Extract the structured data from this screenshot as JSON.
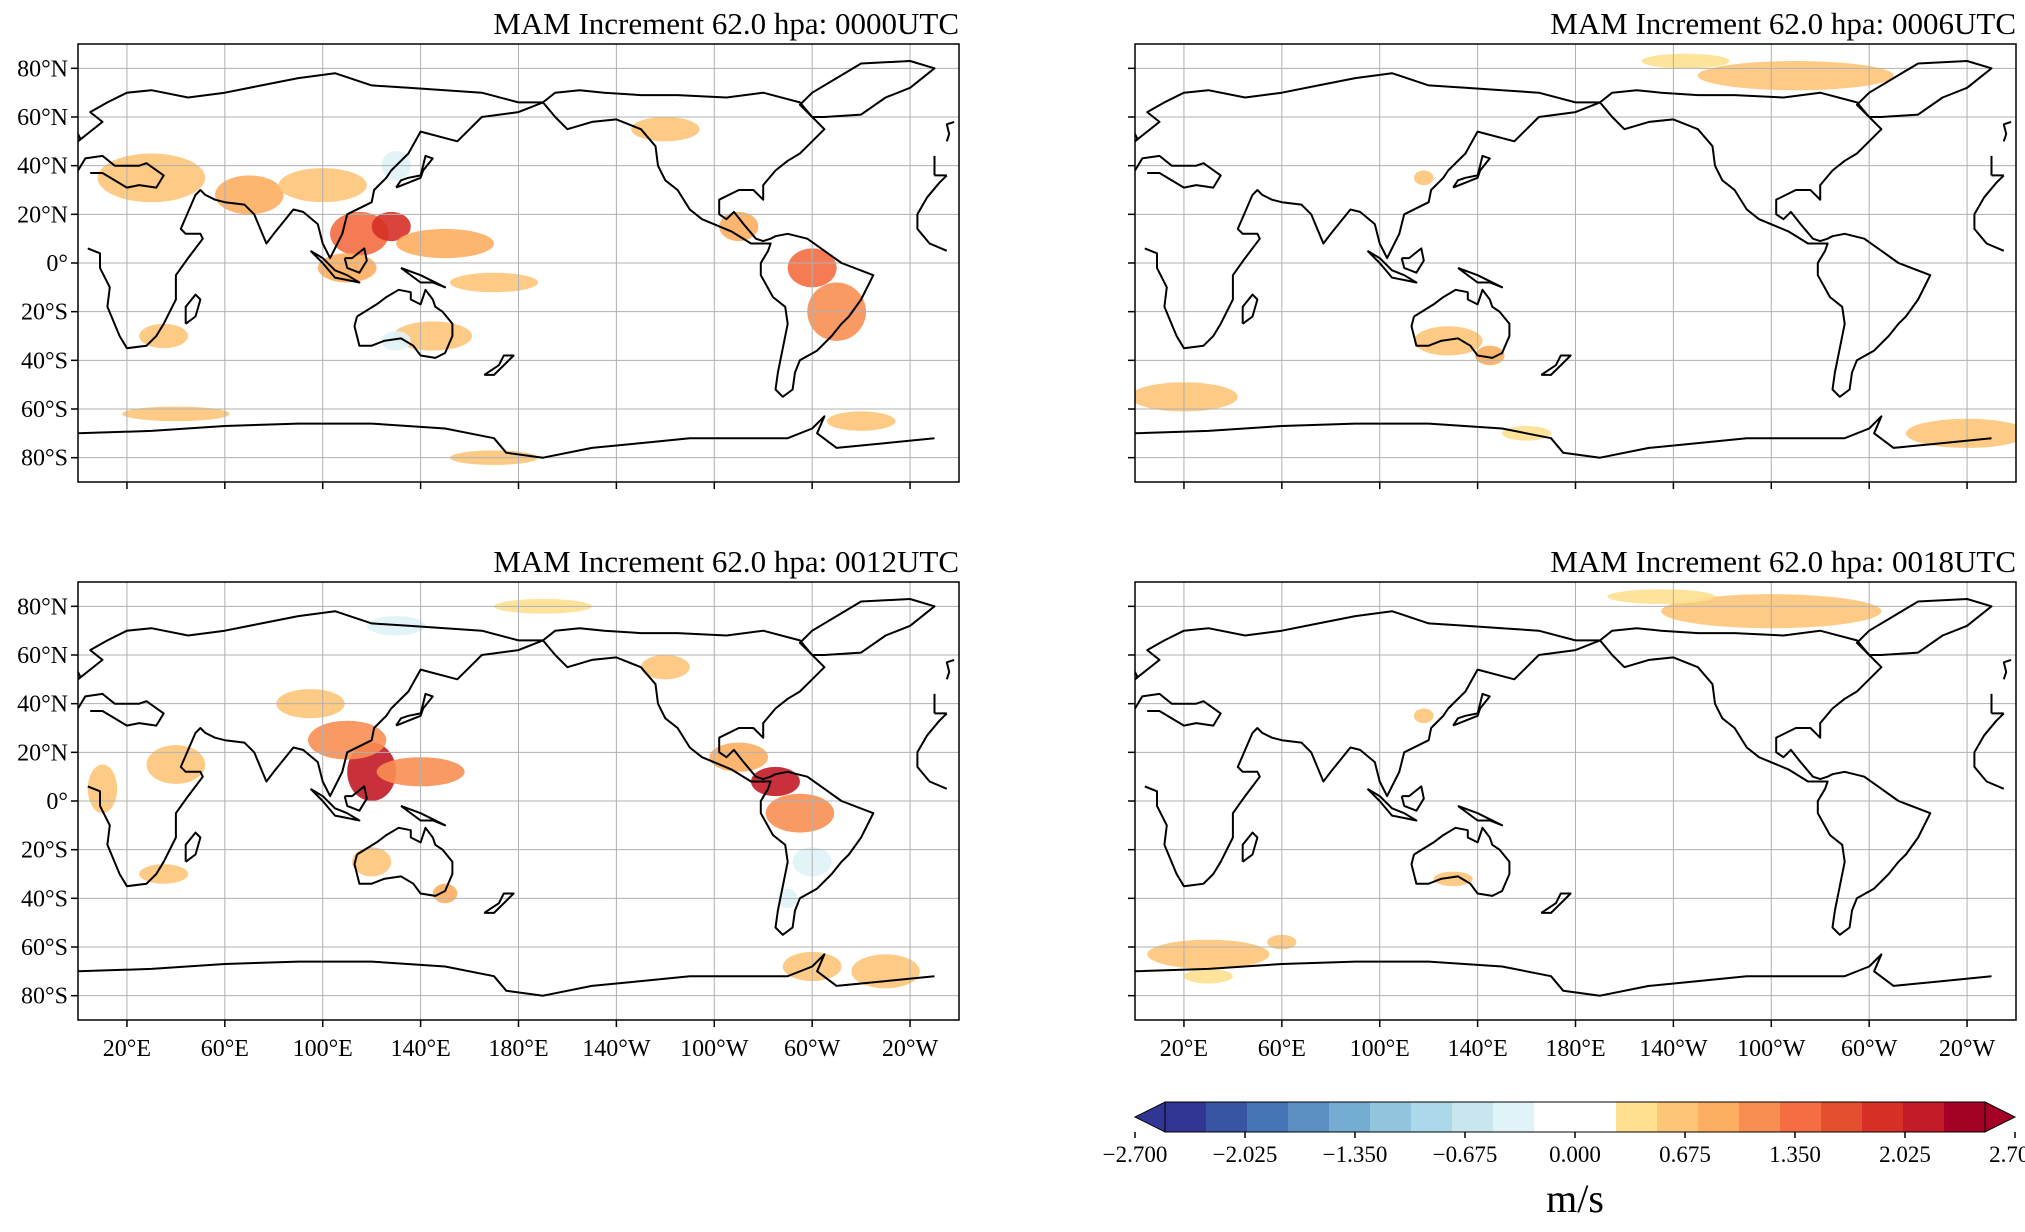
{
  "chart_data": [
    {
      "type": "heatmap",
      "title": "MAM Increment 62.0 hpa:  0000UTC",
      "x_ticks": [
        "20°E",
        "60°E",
        "100°E",
        "140°E",
        "180°E",
        "140°W",
        "100°W",
        "60°W",
        "20°W"
      ],
      "y_ticks": [
        "80°N",
        "60°N",
        "40°N",
        "20°N",
        "0°",
        "20°S",
        "40°S",
        "60°S",
        "80°S"
      ],
      "show_x_ticks": false,
      "show_y_ticks": true,
      "grid": true,
      "blobs": [
        {
          "lon": 30,
          "lat": 35,
          "rx": 22,
          "ry": 10,
          "value": 0.8
        },
        {
          "lon": 70,
          "lat": 28,
          "rx": 14,
          "ry": 8,
          "value": 1.0
        },
        {
          "lon": 100,
          "lat": 32,
          "rx": 18,
          "ry": 7,
          "value": 0.7
        },
        {
          "lon": 115,
          "lat": 12,
          "rx": 12,
          "ry": 9,
          "value": 1.5
        },
        {
          "lon": 128,
          "lat": 15,
          "rx": 8,
          "ry": 6,
          "value": 1.9
        },
        {
          "lon": 150,
          "lat": 8,
          "rx": 20,
          "ry": 6,
          "value": 0.9
        },
        {
          "lon": 110,
          "lat": -2,
          "rx": 12,
          "ry": 6,
          "value": 0.9
        },
        {
          "lon": 170,
          "lat": -8,
          "rx": 18,
          "ry": 4,
          "value": 0.6
        },
        {
          "lon": 145,
          "lat": -30,
          "rx": 16,
          "ry": 6,
          "value": 0.6
        },
        {
          "lon": 35,
          "lat": -30,
          "rx": 10,
          "ry": 5,
          "value": 0.7
        },
        {
          "lon": -60,
          "lat": -2,
          "rx": 10,
          "ry": 8,
          "value": 1.6
        },
        {
          "lon": -50,
          "lat": -20,
          "rx": 12,
          "ry": 12,
          "value": 1.2
        },
        {
          "lon": -90,
          "lat": 15,
          "rx": 8,
          "ry": 6,
          "value": 1.0
        },
        {
          "lon": -120,
          "lat": 55,
          "rx": 14,
          "ry": 5,
          "value": 0.6
        },
        {
          "lon": 40,
          "lat": -62,
          "rx": 22,
          "ry": 3,
          "value": 0.6
        },
        {
          "lon": 170,
          "lat": -80,
          "rx": 18,
          "ry": 3,
          "value": 0.6
        },
        {
          "lon": -40,
          "lat": -65,
          "rx": 14,
          "ry": 4,
          "value": 0.6
        },
        {
          "lon": 130,
          "lat": 40,
          "rx": 6,
          "ry": 6,
          "value": -0.4
        },
        {
          "lon": 130,
          "lat": -32,
          "rx": 6,
          "ry": 4,
          "value": -0.4
        }
      ]
    },
    {
      "type": "heatmap",
      "title": "MAM Increment 62.0 hpa:  0006UTC",
      "x_ticks": [
        "20°E",
        "60°E",
        "100°E",
        "140°E",
        "180°E",
        "140°W",
        "100°W",
        "60°W",
        "20°W"
      ],
      "y_ticks": [
        "80°N",
        "60°N",
        "40°N",
        "20°N",
        "0°",
        "20°S",
        "40°S",
        "60°S",
        "80°S"
      ],
      "show_x_ticks": false,
      "show_y_ticks": false,
      "grid": true,
      "blobs": [
        {
          "lon": -90,
          "lat": 77,
          "rx": 40,
          "ry": 6,
          "value": 0.8
        },
        {
          "lon": -135,
          "lat": 83,
          "rx": 18,
          "ry": 3,
          "value": 0.5
        },
        {
          "lon": 128,
          "lat": -32,
          "rx": 14,
          "ry": 6,
          "value": 0.8
        },
        {
          "lon": 145,
          "lat": -38,
          "rx": 6,
          "ry": 4,
          "value": 1.0
        },
        {
          "lon": 20,
          "lat": -55,
          "rx": 22,
          "ry": 6,
          "value": 0.6
        },
        {
          "lon": -20,
          "lat": -70,
          "rx": 25,
          "ry": 6,
          "value": 0.6
        },
        {
          "lon": 160,
          "lat": -70,
          "rx": 10,
          "ry": 3,
          "value": 0.5
        },
        {
          "lon": 118,
          "lat": 35,
          "rx": 4,
          "ry": 3,
          "value": 0.6
        }
      ]
    },
    {
      "type": "heatmap",
      "title": "MAM Increment 62.0 hpa:  0012UTC",
      "x_ticks": [
        "20°E",
        "60°E",
        "100°E",
        "140°E",
        "180°E",
        "140°W",
        "100°W",
        "60°W",
        "20°W"
      ],
      "y_ticks": [
        "80°N",
        "60°N",
        "40°N",
        "20°N",
        "0°",
        "20°S",
        "40°S",
        "60°S",
        "80°S"
      ],
      "show_x_ticks": true,
      "show_y_ticks": true,
      "grid": true,
      "blobs": [
        {
          "lon": 120,
          "lat": 12,
          "rx": 10,
          "ry": 12,
          "value": 2.3
        },
        {
          "lon": 110,
          "lat": 25,
          "rx": 16,
          "ry": 8,
          "value": 1.2
        },
        {
          "lon": 140,
          "lat": 12,
          "rx": 18,
          "ry": 6,
          "value": 1.1
        },
        {
          "lon": 95,
          "lat": 40,
          "rx": 14,
          "ry": 6,
          "value": 0.7
        },
        {
          "lon": 40,
          "lat": 15,
          "rx": 12,
          "ry": 8,
          "value": 0.6
        },
        {
          "lon": 10,
          "lat": 5,
          "rx": 6,
          "ry": 10,
          "value": 0.7
        },
        {
          "lon": -75,
          "lat": 8,
          "rx": 10,
          "ry": 6,
          "value": 2.2
        },
        {
          "lon": -65,
          "lat": -5,
          "rx": 14,
          "ry": 8,
          "value": 1.3
        },
        {
          "lon": -90,
          "lat": 18,
          "rx": 12,
          "ry": 6,
          "value": 1.0
        },
        {
          "lon": 120,
          "lat": -25,
          "rx": 8,
          "ry": 6,
          "value": 0.7
        },
        {
          "lon": 150,
          "lat": -38,
          "rx": 5,
          "ry": 4,
          "value": 0.9
        },
        {
          "lon": 35,
          "lat": -30,
          "rx": 10,
          "ry": 4,
          "value": 0.6
        },
        {
          "lon": -60,
          "lat": -68,
          "rx": 12,
          "ry": 6,
          "value": 0.8
        },
        {
          "lon": -30,
          "lat": -70,
          "rx": 14,
          "ry": 7,
          "value": 0.6
        },
        {
          "lon": 190,
          "lat": 80,
          "rx": 20,
          "ry": 3,
          "value": 0.5
        },
        {
          "lon": -120,
          "lat": 55,
          "rx": 10,
          "ry": 5,
          "value": 0.6
        },
        {
          "lon": -60,
          "lat": -25,
          "rx": 8,
          "ry": 6,
          "value": -0.4
        },
        {
          "lon": -70,
          "lat": -40,
          "rx": 4,
          "ry": 4,
          "value": -0.4
        },
        {
          "lon": 130,
          "lat": 72,
          "rx": 12,
          "ry": 4,
          "value": -0.3
        }
      ]
    },
    {
      "type": "heatmap",
      "title": "MAM Increment 62.0 hpa:  0018UTC",
      "x_ticks": [
        "20°E",
        "60°E",
        "100°E",
        "140°E",
        "180°E",
        "140°W",
        "100°W",
        "60°W",
        "20°W"
      ],
      "y_ticks": [
        "80°N",
        "60°N",
        "40°N",
        "20°N",
        "0°",
        "20°S",
        "40°S",
        "60°S",
        "80°S"
      ],
      "show_x_ticks": true,
      "show_y_ticks": false,
      "grid": true,
      "blobs": [
        {
          "lon": -100,
          "lat": 78,
          "rx": 45,
          "ry": 7,
          "value": 0.7
        },
        {
          "lon": -145,
          "lat": 84,
          "rx": 22,
          "ry": 3,
          "value": 0.5
        },
        {
          "lon": 30,
          "lat": -63,
          "rx": 25,
          "ry": 6,
          "value": 0.6
        },
        {
          "lon": 60,
          "lat": -58,
          "rx": 6,
          "ry": 3,
          "value": 0.6
        },
        {
          "lon": 130,
          "lat": -32,
          "rx": 8,
          "ry": 3,
          "value": 0.6
        },
        {
          "lon": 30,
          "lat": -72,
          "rx": 10,
          "ry": 3,
          "value": 0.5
        },
        {
          "lon": 118,
          "lat": 35,
          "rx": 4,
          "ry": 3,
          "value": 0.6
        }
      ]
    }
  ],
  "colorbar": {
    "ticks": [
      "−2.700",
      "−2.025",
      "−1.350",
      "−0.675",
      "0.000",
      "0.675",
      "1.350",
      "2.025",
      "2.700"
    ],
    "label": "m/s",
    "min": -2.7,
    "max": 2.7,
    "colors": [
      "#313695",
      "#3a54a4",
      "#4575b4",
      "#5b8ec2",
      "#74add1",
      "#92c5de",
      "#abd9e9",
      "#c9e6ef",
      "#e0f3f8",
      "#ffffff",
      "#ffffff",
      "#fee090",
      "#fdc578",
      "#fdae61",
      "#f88e52",
      "#f46d43",
      "#e4502f",
      "#d73027",
      "#c21a27",
      "#a50026"
    ],
    "under_color": "#313695",
    "over_color": "#a50026"
  }
}
